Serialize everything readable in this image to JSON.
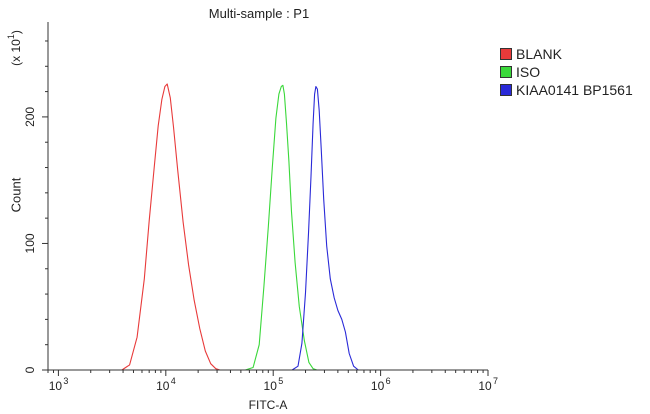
{
  "chart_data": {
    "type": "line",
    "title": "Multi-sample : P1",
    "xlabel": "FITC-A",
    "ylabel": "Count",
    "y_multiplier_label": "(x 10",
    "y_multiplier_exp": "1",
    "y_multiplier_close": ")",
    "x_scale": "log",
    "xlim": [
      800,
      10000000
    ],
    "ylim": [
      0,
      275
    ],
    "x_ticks": [
      {
        "value": 1000,
        "base": "10",
        "exp": "3"
      },
      {
        "value": 10000,
        "base": "10",
        "exp": "4"
      },
      {
        "value": 100000,
        "base": "10",
        "exp": "5"
      },
      {
        "value": 1000000,
        "base": "10",
        "exp": "6"
      },
      {
        "value": 10000000,
        "base": "10",
        "exp": "7"
      }
    ],
    "y_ticks": [
      {
        "value": 0,
        "label": "0"
      },
      {
        "value": 100,
        "label": "100"
      },
      {
        "value": 200,
        "label": "200"
      }
    ],
    "grid": false,
    "legend_position": "top-right",
    "series": [
      {
        "name": "BLANK",
        "color": "#e83a3a",
        "x": [
          3900,
          4600,
          5400,
          6300,
          7000,
          7800,
          8500,
          9200,
          9800,
          10300,
          11000,
          11800,
          12900,
          14500,
          16300,
          18400,
          20700,
          23300,
          26200,
          29200,
          31900,
          35000
        ],
        "y": [
          0,
          4,
          26,
          72,
          118,
          160,
          193,
          214,
          224,
          226,
          215,
          192,
          158,
          117,
          83,
          55,
          33,
          15,
          5,
          1,
          0,
          0
        ]
      },
      {
        "name": "ISO",
        "color": "#3ad83a",
        "x": [
          55000,
          65000,
          74000,
          82000,
          90000,
          98000,
          106000,
          113000,
          119000,
          123000,
          127000,
          133000,
          140000,
          148000,
          160000,
          175000,
          195000,
          215000,
          235000,
          255000,
          270000
        ],
        "y": [
          0,
          2,
          20,
          66,
          113,
          160,
          199,
          218,
          224,
          225,
          218,
          195,
          165,
          125,
          85,
          50,
          23,
          6,
          1,
          0,
          0
        ]
      },
      {
        "name": "KIAA0141 BP1561",
        "color": "#2a2ad8",
        "x": [
          150000,
          170000,
          185000,
          200000,
          213000,
          225000,
          235000,
          243000,
          250000,
          258000,
          268000,
          280000,
          295000,
          315000,
          340000,
          370000,
          400000,
          435000,
          470000,
          510000,
          560000,
          620000,
          690000
        ],
        "y": [
          0,
          3,
          21,
          61,
          108,
          153,
          195,
          218,
          224,
          222,
          205,
          175,
          135,
          98,
          72,
          57,
          47,
          40,
          30,
          13,
          3,
          0,
          0
        ]
      }
    ]
  }
}
